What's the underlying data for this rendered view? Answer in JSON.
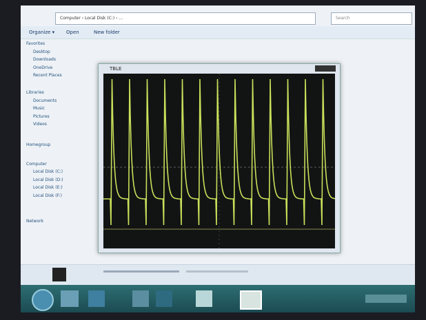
{
  "explorer": {
    "address": "Computer › Local Disk (C:) › ...",
    "search": "Search",
    "toolbar": [
      "Organize ▾",
      "Open",
      "New folder"
    ],
    "nav": [
      "Favorites",
      "Desktop",
      "Downloads",
      "OneDrive",
      "Recent Places",
      "Libraries",
      "Documents",
      "Music",
      "Pictures",
      "Videos",
      "Homegroup",
      "Computer",
      "Local Disk (C:)",
      "Local Disk (D:)",
      "Local Disk (E:)",
      "Local Disk (F:)",
      "Network"
    ]
  },
  "scope": {
    "title": "TBLE"
  }
}
